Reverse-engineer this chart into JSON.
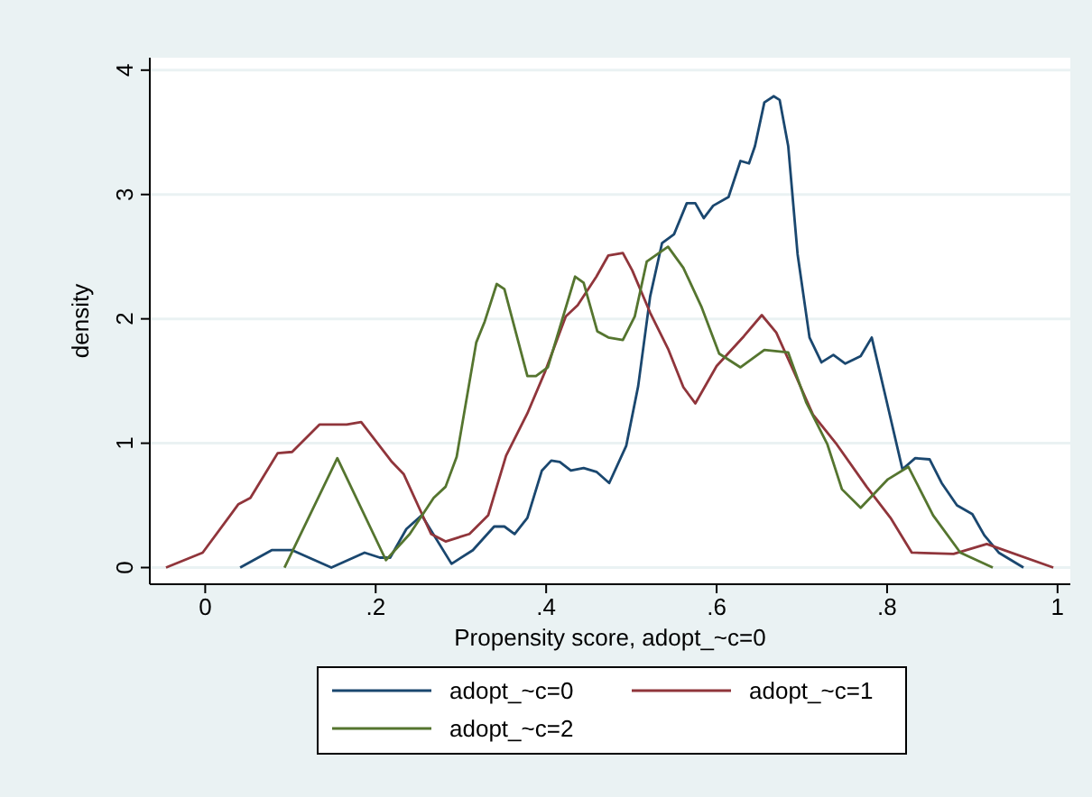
{
  "chart_data": {
    "type": "line",
    "xlabel": "Propensity score, adopt_~c=0",
    "ylabel": "density",
    "xlim": [
      -0.065,
      1.015
    ],
    "ylim": [
      -0.134,
      4.1
    ],
    "xticks": [
      {
        "value": 0,
        "label": "0"
      },
      {
        "value": 0.2,
        "label": ".2"
      },
      {
        "value": 0.4,
        "label": ".4"
      },
      {
        "value": 0.6,
        "label": ".6"
      },
      {
        "value": 0.8,
        "label": ".8"
      },
      {
        "value": 1,
        "label": "1"
      }
    ],
    "yticks": [
      0,
      1,
      2,
      3,
      4
    ],
    "grid": "y",
    "legend": "bottom",
    "series": [
      {
        "name": "adopt_~c=0",
        "color": "#1a476f",
        "x": [
          0.041,
          0.078,
          0.102,
          0.148,
          0.187,
          0.205,
          0.217,
          0.236,
          0.254,
          0.289,
          0.314,
          0.339,
          0.351,
          0.363,
          0.378,
          0.395,
          0.406,
          0.416,
          0.429,
          0.444,
          0.459,
          0.474,
          0.494,
          0.508,
          0.522,
          0.536,
          0.55,
          0.565,
          0.575,
          0.585,
          0.596,
          0.614,
          0.628,
          0.638,
          0.645,
          0.656,
          0.667,
          0.674,
          0.684,
          0.695,
          0.709,
          0.723,
          0.737,
          0.751,
          0.769,
          0.782,
          0.797,
          0.818,
          0.833,
          0.85,
          0.864,
          0.882,
          0.9,
          0.914,
          0.931,
          0.96
        ],
        "values": [
          0,
          0.14,
          0.14,
          0,
          0.12,
          0.08,
          0.08,
          0.31,
          0.42,
          0.03,
          0.14,
          0.33,
          0.33,
          0.27,
          0.4,
          0.78,
          0.86,
          0.85,
          0.78,
          0.8,
          0.77,
          0.68,
          0.98,
          1.46,
          2.18,
          2.61,
          2.68,
          2.93,
          2.93,
          2.81,
          2.91,
          2.98,
          3.27,
          3.25,
          3.39,
          3.74,
          3.79,
          3.76,
          3.39,
          2.52,
          1.85,
          1.65,
          1.71,
          1.64,
          1.7,
          1.85,
          1.41,
          0.79,
          0.88,
          0.87,
          0.68,
          0.5,
          0.43,
          0.26,
          0.12,
          0
        ]
      },
      {
        "name": "adopt_~c=1",
        "color": "#90353b",
        "x": [
          -0.046,
          -0.003,
          0.039,
          0.053,
          0.085,
          0.102,
          0.134,
          0.166,
          0.183,
          0.219,
          0.233,
          0.265,
          0.282,
          0.31,
          0.332,
          0.353,
          0.378,
          0.399,
          0.423,
          0.437,
          0.459,
          0.473,
          0.49,
          0.501,
          0.522,
          0.543,
          0.561,
          0.575,
          0.6,
          0.632,
          0.653,
          0.67,
          0.691,
          0.713,
          0.741,
          0.776,
          0.804,
          0.829,
          0.878,
          0.917,
          0.995
        ],
        "values": [
          0,
          0.12,
          0.51,
          0.56,
          0.92,
          0.93,
          1.15,
          1.15,
          1.17,
          0.85,
          0.75,
          0.27,
          0.21,
          0.27,
          0.42,
          0.9,
          1.24,
          1.58,
          2.02,
          2.11,
          2.34,
          2.51,
          2.53,
          2.39,
          2.05,
          1.76,
          1.45,
          1.32,
          1.62,
          1.86,
          2.03,
          1.89,
          1.57,
          1.23,
          0.99,
          0.65,
          0.4,
          0.12,
          0.11,
          0.19,
          0
        ]
      },
      {
        "name": "adopt_~c=2",
        "color": "#55752f",
        "x": [
          0.093,
          0.155,
          0.212,
          0.24,
          0.268,
          0.282,
          0.295,
          0.318,
          0.328,
          0.342,
          0.351,
          0.378,
          0.388,
          0.402,
          0.434,
          0.444,
          0.46,
          0.473,
          0.49,
          0.504,
          0.518,
          0.543,
          0.561,
          0.582,
          0.603,
          0.628,
          0.656,
          0.684,
          0.705,
          0.73,
          0.747,
          0.769,
          0.801,
          0.825,
          0.854,
          0.886,
          0.924
        ],
        "values": [
          0,
          0.88,
          0.06,
          0.27,
          0.56,
          0.65,
          0.89,
          1.81,
          1.98,
          2.28,
          2.24,
          1.54,
          1.54,
          1.61,
          2.34,
          2.29,
          1.9,
          1.85,
          1.83,
          2.02,
          2.46,
          2.58,
          2.41,
          2.1,
          1.72,
          1.61,
          1.75,
          1.73,
          1.33,
          0.99,
          0.63,
          0.48,
          0.71,
          0.81,
          0.42,
          0.12,
          0
        ]
      }
    ]
  }
}
